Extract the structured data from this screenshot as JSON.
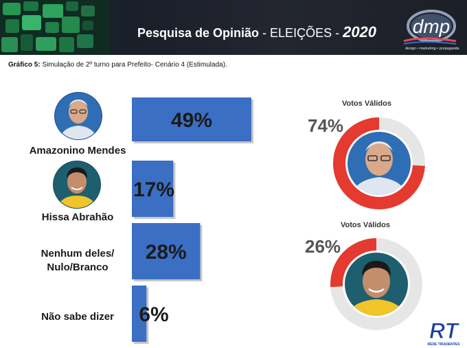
{
  "header": {
    "title_main": "Pesquisa de Opinião",
    "title_sep": " - ELEIÇÕES - ",
    "title_year": "2020",
    "logo_text": "dmp",
    "logo_tagline": "design • marketing • propaganda"
  },
  "caption": {
    "label": "Gráfico 5:",
    "text": " Simulação de 2º turno para Prefeito- Cenário 4 (Estimulada)."
  },
  "candidates": [
    {
      "name": "Amazonino Mendes",
      "portrait": "older-man-with-glasses-portrait",
      "shirt": "#dfe6f0",
      "bg": "#2f6db5"
    },
    {
      "name": "Hissa Abrahão",
      "portrait": "young-man-portrait",
      "shirt": "#f0c52a",
      "bg": "#1d5f6f"
    },
    {
      "name": "Nenhum deles/\nNulo/Branco",
      "line1": "Nenhum deles/",
      "line2": "Nulo/Branco"
    },
    {
      "name": "Não sabe dizer"
    }
  ],
  "chart_data": [
    {
      "type": "bar",
      "orientation": "horizontal",
      "categories": [
        "Amazonino Mendes",
        "Hissa Abrahão",
        "Nenhum deles/Nulo/Branco",
        "Não sabe dizer"
      ],
      "values": [
        49,
        17,
        28,
        6
      ],
      "value_labels": [
        "49%",
        "17%",
        "28%",
        "6%"
      ],
      "bar_color": "#3a6fc4",
      "title": "",
      "xlabel": "",
      "ylabel": ""
    },
    {
      "type": "pie",
      "style": "donut",
      "title": "Votos Válidos",
      "label": "74%",
      "value": 74,
      "candidate": "Amazonino Mendes",
      "colors": {
        "fill": "#e43a2f",
        "track": "#e6e6e6"
      }
    },
    {
      "type": "pie",
      "style": "donut",
      "title": "Votos Válidos",
      "label": "26%",
      "value": 26,
      "candidate": "Hissa Abrahão",
      "colors": {
        "fill": "#e43a2f",
        "track": "#e6e6e6"
      }
    }
  ],
  "footer_logo": {
    "text": "RT",
    "tagline": "REDE TIRADENTES",
    "color": "#1c3f9e"
  }
}
